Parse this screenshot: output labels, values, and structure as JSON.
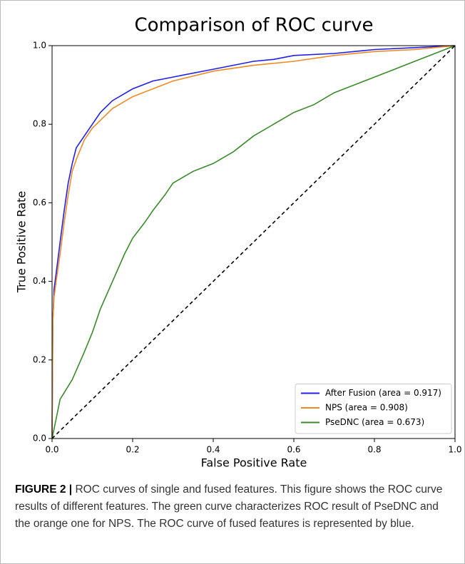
{
  "chart_data": {
    "type": "line",
    "title": "Comparison of ROC curve",
    "x_label": "False Positive Rate",
    "y_label": "True Positive Rate",
    "xlim": [
      0,
      1
    ],
    "ylim": [
      0,
      1
    ],
    "xticks": [
      {
        "value": 0,
        "label": "0.0"
      },
      0.2,
      0.4,
      0.6,
      0.8,
      {
        "value": 1,
        "label": "1.0"
      }
    ],
    "yticks": [
      {
        "value": 0,
        "label": "0.0"
      },
      0.2,
      0.4,
      0.6,
      0.8,
      {
        "value": 1,
        "label": "1.0"
      }
    ],
    "legend": "lower right",
    "series": [
      {
        "name": "After Fusion (area = 0.917)",
        "color": "#1f1fe8",
        "x": [
          0,
          0.002,
          0.005,
          0.01,
          0.02,
          0.03,
          0.04,
          0.05,
          0.06,
          0.08,
          0.1,
          0.12,
          0.15,
          0.2,
          0.25,
          0.3,
          0.4,
          0.5,
          0.55,
          0.6,
          0.7,
          0.8,
          0.9,
          1
        ],
        "values": [
          0,
          0.3,
          0.38,
          0.42,
          0.5,
          0.58,
          0.65,
          0.7,
          0.74,
          0.77,
          0.8,
          0.83,
          0.86,
          0.89,
          0.91,
          0.92,
          0.94,
          0.96,
          0.965,
          0.975,
          0.98,
          0.99,
          0.995,
          1
        ]
      },
      {
        "name": "NPS (area = 0.908)",
        "color": "#f08a24",
        "x": [
          0,
          0.002,
          0.005,
          0.01,
          0.02,
          0.03,
          0.04,
          0.05,
          0.06,
          0.08,
          0.1,
          0.12,
          0.15,
          0.2,
          0.25,
          0.3,
          0.4,
          0.5,
          0.6,
          0.7,
          0.8,
          0.9,
          1
        ],
        "values": [
          0,
          0.3,
          0.36,
          0.4,
          0.47,
          0.55,
          0.62,
          0.68,
          0.71,
          0.76,
          0.79,
          0.81,
          0.84,
          0.87,
          0.89,
          0.91,
          0.935,
          0.95,
          0.96,
          0.975,
          0.985,
          0.99,
          1
        ]
      },
      {
        "name": "PseDNC (area = 0.673)",
        "color": "#3a8a2a",
        "x": [
          0,
          0.01,
          0.02,
          0.05,
          0.08,
          0.1,
          0.12,
          0.15,
          0.18,
          0.2,
          0.23,
          0.25,
          0.28,
          0.3,
          0.35,
          0.4,
          0.45,
          0.5,
          0.55,
          0.6,
          0.65,
          0.7,
          0.75,
          0.8,
          0.85,
          0.9,
          0.95,
          1
        ],
        "values": [
          0,
          0.05,
          0.1,
          0.15,
          0.22,
          0.27,
          0.33,
          0.4,
          0.47,
          0.51,
          0.55,
          0.58,
          0.62,
          0.65,
          0.68,
          0.7,
          0.73,
          0.77,
          0.8,
          0.83,
          0.85,
          0.88,
          0.9,
          0.92,
          0.94,
          0.96,
          0.98,
          1
        ]
      }
    ],
    "reference_line": {
      "x": [
        0,
        1
      ],
      "values": [
        0,
        1
      ],
      "color": "#000000",
      "dashed": true
    }
  },
  "caption": {
    "label": "FIGURE 2 |",
    "text": "ROC curves of single and fused features. This figure shows the ROC curve results of different features. The green curve characterizes ROC result of PseDNC and the orange one for NPS. The ROC curve of fused features is represented by blue."
  }
}
